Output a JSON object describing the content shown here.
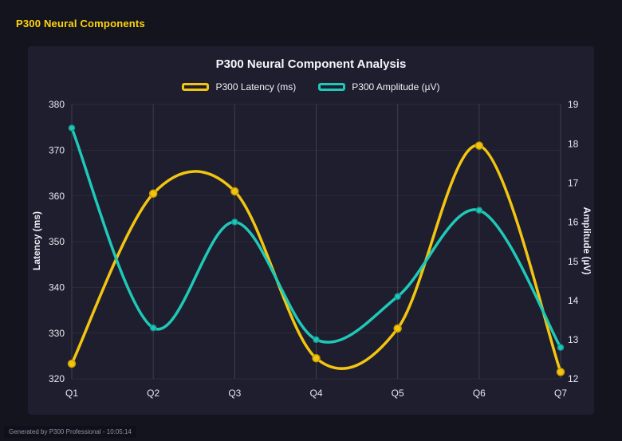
{
  "page": {
    "header_title": "P300 Neural Components",
    "footer": "Generated by P300 Professional - 10:05:14"
  },
  "colors": {
    "page_background": "#14141f",
    "card_background": "#1e1e2f",
    "latency_yellow": "#f2c511",
    "amplitude_teal": "#1fc8b7",
    "header_yellow": "#ffd60a",
    "grid_line": "rgba(255,255,255,0.14)",
    "tick_text": "#e6e8ef"
  },
  "chart_data": {
    "type": "line",
    "title": "P300 Neural Component Analysis",
    "categories": [
      "Q1",
      "Q2",
      "Q3",
      "Q4",
      "Q5",
      "Q6",
      "Q7"
    ],
    "series": [
      {
        "name": "P300 Latency (ms)",
        "axis": "left",
        "color": "#f2c511",
        "marker_stroke": "#c79c00",
        "values": [
          323.3,
          360.5,
          361.0,
          324.5,
          331.0,
          371.0,
          321.5
        ]
      },
      {
        "name": "P300 Amplitude (µV)",
        "axis": "right",
        "color": "#1fc8b7",
        "marker_stroke": "#149e91",
        "values": [
          18.4,
          13.3,
          16.0,
          13.0,
          14.1,
          16.3,
          12.8
        ]
      }
    ],
    "left_axis": {
      "label": "Latency (ms)",
      "min": 320,
      "max": 380,
      "step": 10
    },
    "right_axis": {
      "label": "Amplitude (µV)",
      "min": 12,
      "max": 19,
      "step": 1
    },
    "grid": true,
    "legend_position": "top",
    "line_style": "smooth"
  }
}
